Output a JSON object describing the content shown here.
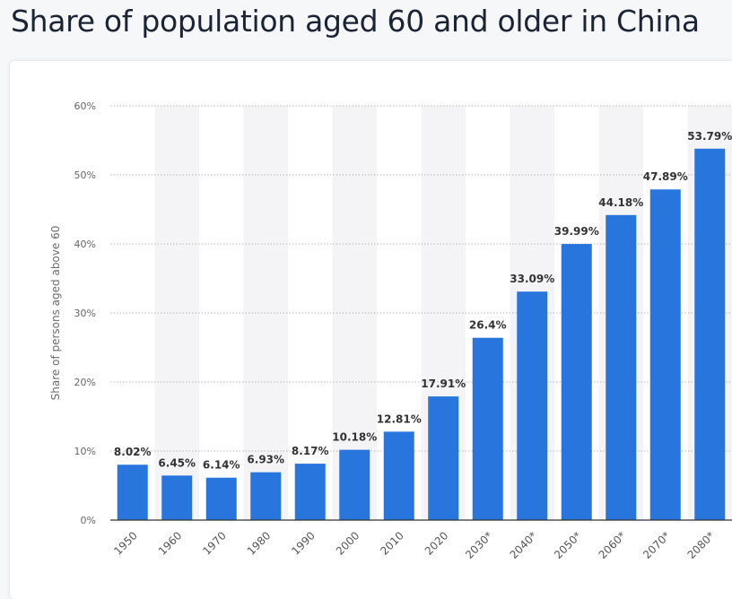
{
  "page": {
    "title": "Share of population aged 60 and older in China"
  },
  "chart_data": {
    "type": "bar",
    "title": "Share of population aged 60 and older in China",
    "xlabel": "",
    "ylabel": "Share of persons aged above 60",
    "categories": [
      "1950",
      "1960",
      "1970",
      "1980",
      "1990",
      "2000",
      "2010",
      "2020",
      "2030*",
      "2040*",
      "2050*",
      "2060*",
      "2070*",
      "2080*"
    ],
    "values": [
      8.02,
      6.45,
      6.14,
      6.93,
      8.17,
      10.18,
      12.81,
      17.91,
      26.4,
      33.09,
      39.99,
      44.18,
      47.89,
      53.79
    ],
    "value_labels": [
      "8.02%",
      "6.45%",
      "6.14%",
      "6.93%",
      "8.17%",
      "10.18%",
      "12.81%",
      "17.91%",
      "26.4%",
      "33.09%",
      "39.99%",
      "44.18%",
      "47.89%",
      "53.79%"
    ],
    "ylim": [
      0,
      60
    ],
    "yticks": [
      0,
      10,
      20,
      30,
      40,
      50,
      60
    ],
    "ytick_labels": [
      "0%",
      "10%",
      "20%",
      "30%",
      "40%",
      "50%",
      "60%"
    ],
    "grid": true,
    "legend": "none",
    "bar_color": "#2876dd"
  }
}
